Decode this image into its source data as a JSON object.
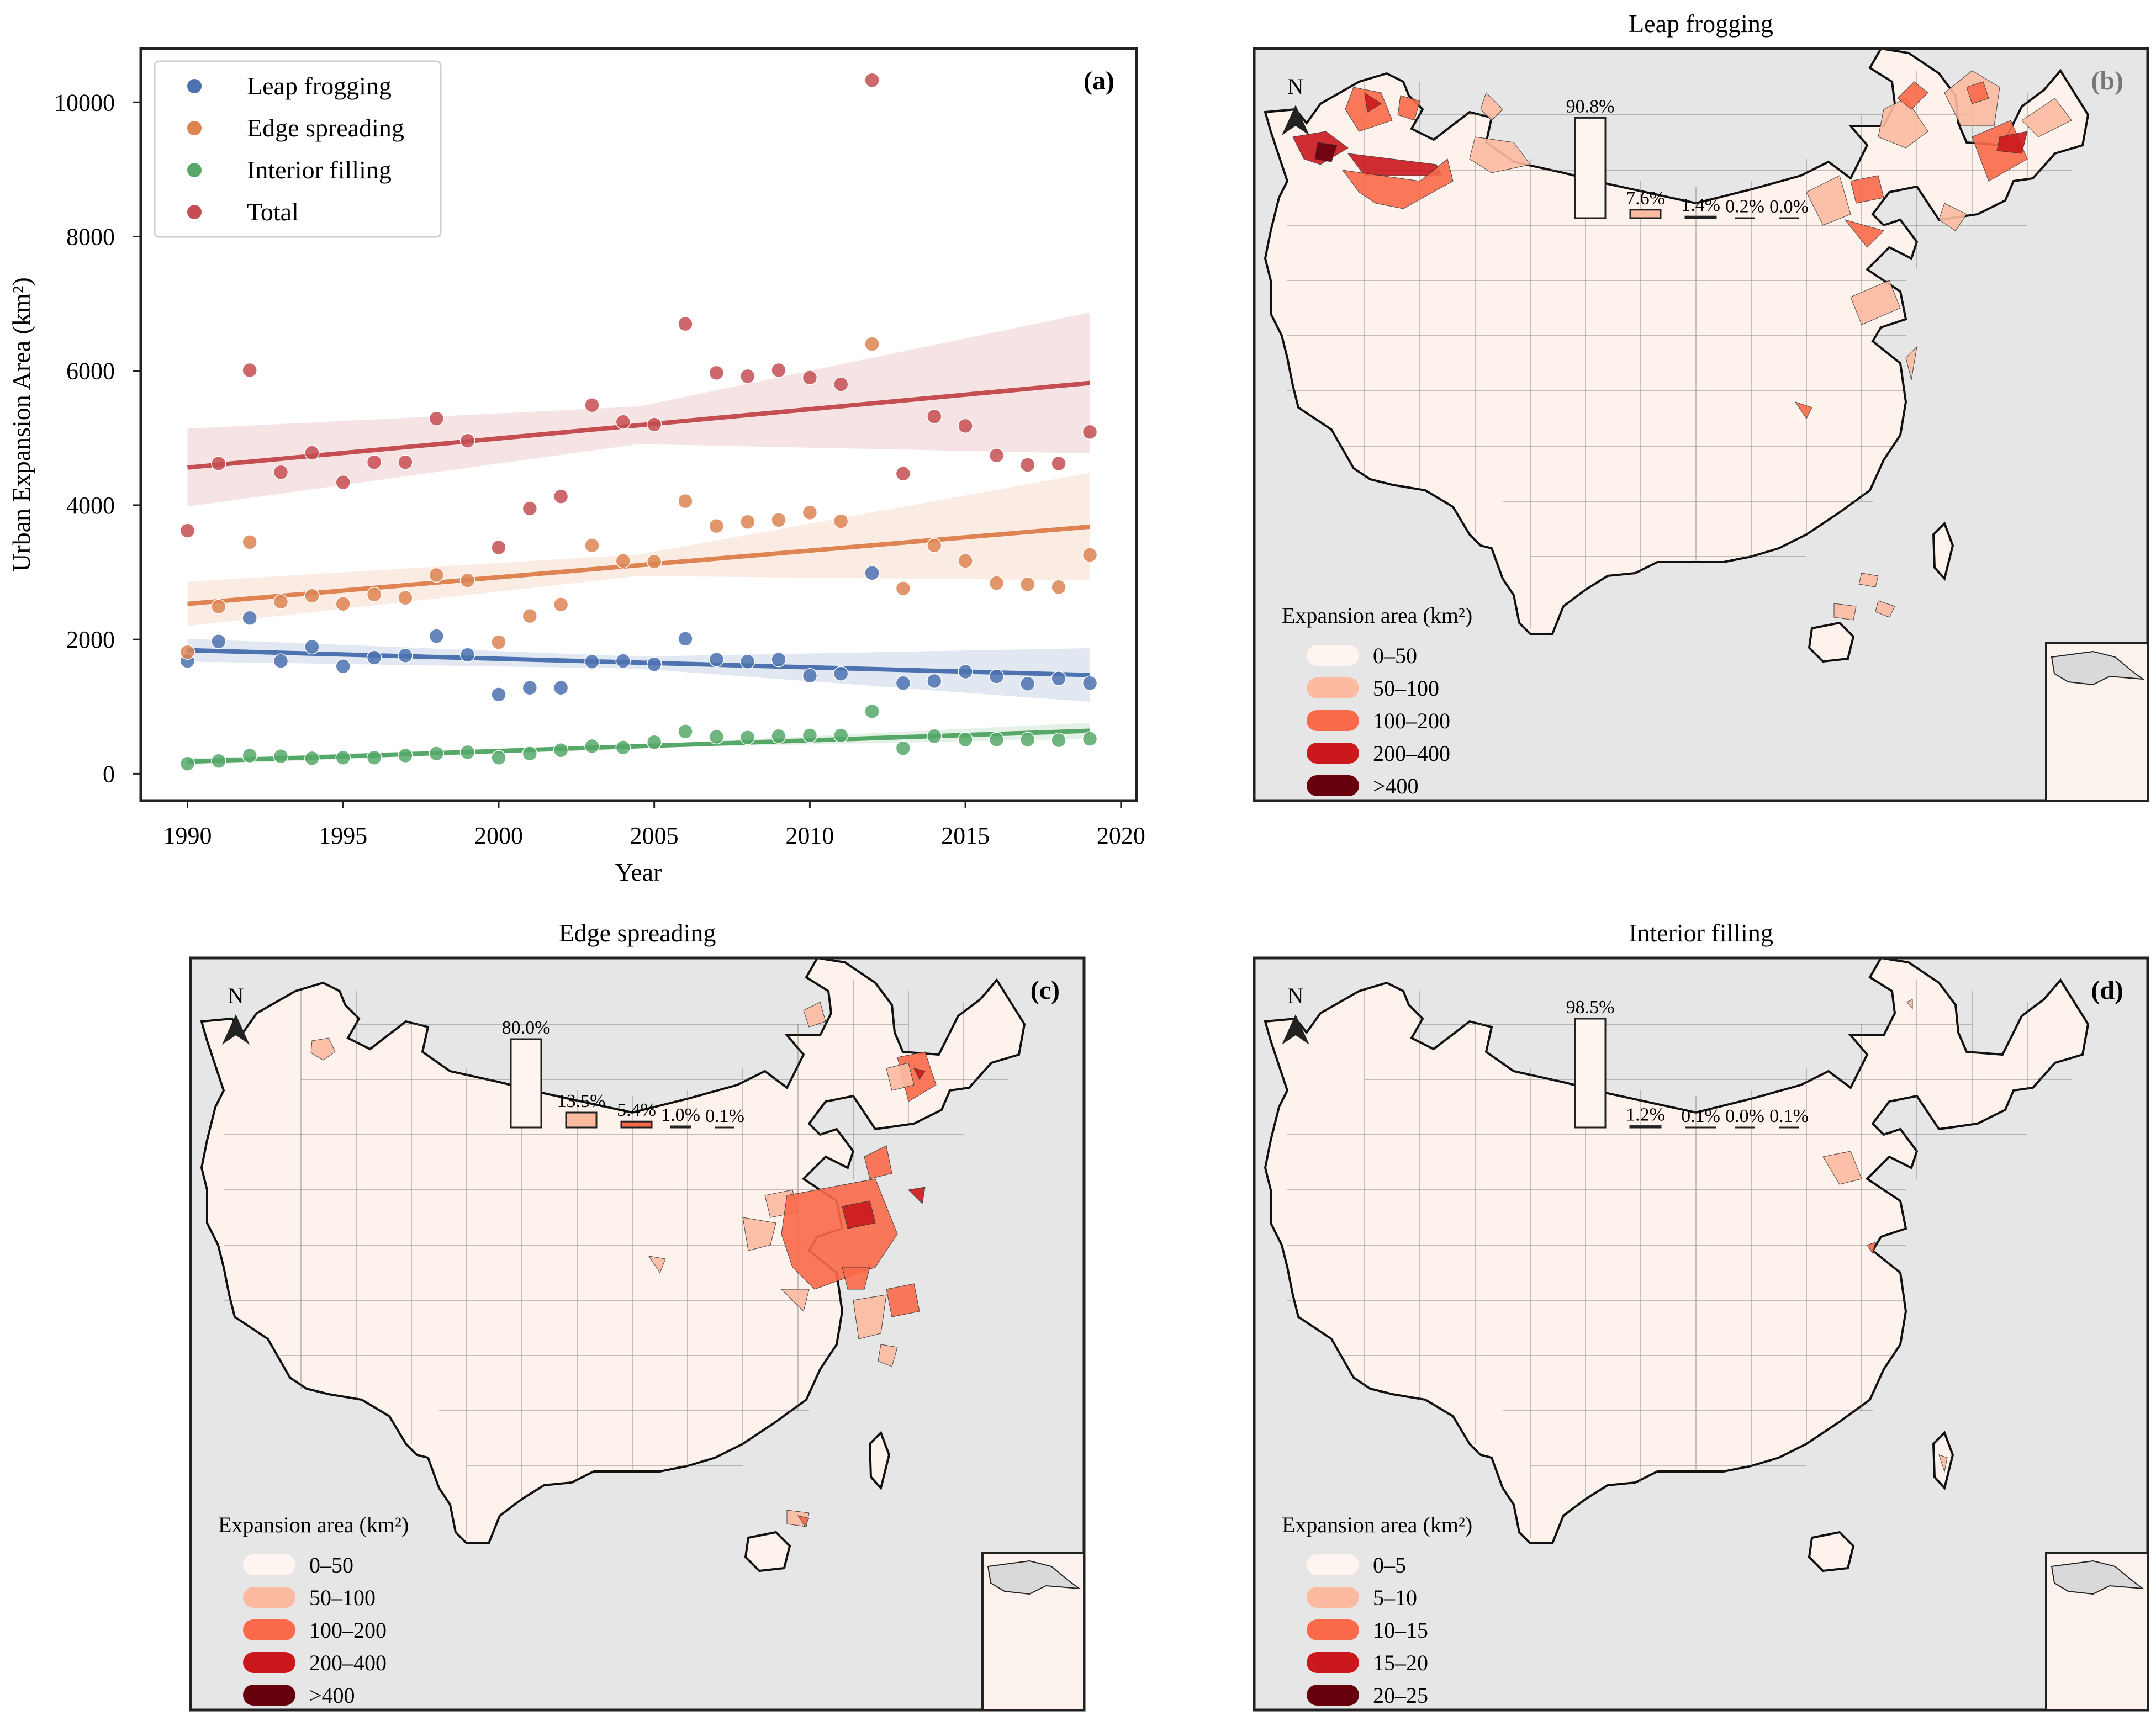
{
  "colors": {
    "leap": "#4c72b0",
    "edge": "#dd8452",
    "interior": "#55a868",
    "total": "#c44e52",
    "legend_ramp": [
      "#fff5f0",
      "#fcbba1",
      "#fb6a4a",
      "#cb181d",
      "#67000d"
    ],
    "map_bg": "#e6e6e6",
    "map_land": "#fef2ec"
  },
  "chart_data": [
    {
      "panel": "a",
      "type": "scatter",
      "panel_label": "(a)",
      "xlabel": "Year",
      "ylabel": "Urban Expansion Area (km²)",
      "xlim": [
        1988.5,
        2020.5
      ],
      "ylim": [
        -400,
        10800
      ],
      "xticks": [
        1990,
        1995,
        2000,
        2005,
        2010,
        2015,
        2020
      ],
      "yticks": [
        0,
        2000,
        4000,
        6000,
        8000,
        10000
      ],
      "legend": [
        "Leap frogging",
        "Edge spreading",
        "Interior filling",
        "Total"
      ],
      "legend_position": "upper-left",
      "x": [
        1990,
        1991,
        1992,
        1993,
        1994,
        1995,
        1996,
        1997,
        1998,
        1999,
        2000,
        2001,
        2002,
        2003,
        2004,
        2005,
        2006,
        2007,
        2008,
        2009,
        2010,
        2011,
        2012,
        2013,
        2014,
        2015,
        2016,
        2017,
        2018,
        2019
      ],
      "series": [
        {
          "name": "Leap frogging",
          "values": [
            1680,
            1970,
            2320,
            1680,
            1890,
            1600,
            1730,
            1760,
            2050,
            1770,
            1180,
            1280,
            1280,
            1670,
            1680,
            1630,
            2010,
            1700,
            1670,
            1700,
            1460,
            1490,
            2990,
            1350,
            1380,
            1520,
            1450,
            1340,
            1420,
            1350
          ],
          "trend": [
            1840,
            1470
          ],
          "ci_halfwidth": [
            170,
            90,
            400
          ]
        },
        {
          "name": "Edge spreading",
          "values": [
            1810,
            2490,
            3450,
            2560,
            2650,
            2530,
            2670,
            2620,
            2960,
            2880,
            1960,
            2350,
            2520,
            3400,
            3170,
            3160,
            4060,
            3690,
            3750,
            3780,
            3890,
            3760,
            6400,
            2760,
            3400,
            3170,
            2840,
            2820,
            2780,
            3260
          ],
          "trend": [
            2530,
            3680
          ],
          "ci_halfwidth": [
            330,
            160,
            800
          ]
        },
        {
          "name": "Interior filling",
          "values": [
            150,
            190,
            270,
            260,
            230,
            240,
            240,
            270,
            300,
            320,
            240,
            300,
            350,
            410,
            390,
            470,
            630,
            550,
            540,
            560,
            570,
            570,
            930,
            380,
            560,
            510,
            510,
            510,
            500,
            520
          ],
          "trend": [
            180,
            640
          ],
          "ci_halfwidth": [
            50,
            25,
            120
          ]
        },
        {
          "name": "Total",
          "values": [
            3620,
            4620,
            6010,
            4490,
            4780,
            4340,
            4640,
            4640,
            5290,
            4960,
            3370,
            3950,
            4130,
            5490,
            5240,
            5200,
            6700,
            5970,
            5920,
            6010,
            5900,
            5800,
            10330,
            4470,
            5320,
            5180,
            4740,
            4600,
            4620,
            5090
          ],
          "trend": [
            4560,
            5820
          ],
          "ci_halfwidth": [
            580,
            280,
            1050
          ]
        }
      ]
    },
    {
      "panel": "b",
      "type": "bar",
      "title": "Leap frogging",
      "panel_label": "(b)",
      "categories": [
        "0–50",
        "50–100",
        "100–200",
        "200–400",
        ">400"
      ],
      "values": [
        90.8,
        7.6,
        1.4,
        0.2,
        0.0
      ],
      "labels": [
        "90.8%",
        "7.6%",
        "1.4%",
        "0.2%",
        "0.0%"
      ],
      "legend_title": "Expansion area (km²)",
      "legend_entries": [
        "0–50",
        "50–100",
        "100–200",
        "200–400",
        ">400"
      ]
    },
    {
      "panel": "c",
      "type": "bar",
      "title": "Edge spreading",
      "panel_label": "(c)",
      "categories": [
        "0–50",
        "50–100",
        "100–200",
        "200–400",
        ">400"
      ],
      "values": [
        80.0,
        13.5,
        5.4,
        1.0,
        0.1
      ],
      "labels": [
        "80.0%",
        "13.5%",
        "5.4%",
        "1.0%",
        "0.1%"
      ],
      "legend_title": "Expansion area (km²)",
      "legend_entries": [
        "0–50",
        "50–100",
        "100–200",
        "200–400",
        ">400"
      ]
    },
    {
      "panel": "d",
      "type": "bar",
      "title": "Interior filling",
      "panel_label": "(d)",
      "categories": [
        "0–5",
        "5–10",
        "10–15",
        "15–20",
        "20–25"
      ],
      "values": [
        98.5,
        1.2,
        0.1,
        0.0,
        0.1
      ],
      "labels": [
        "98.5%",
        "1.2%",
        "0.1%",
        "0.0%",
        "0.1%"
      ],
      "legend_title": "Expansion area (km²)",
      "legend_entries": [
        "0–5",
        "5–10",
        "10–15",
        "15–20",
        "20–25"
      ]
    }
  ],
  "north_label": "N"
}
